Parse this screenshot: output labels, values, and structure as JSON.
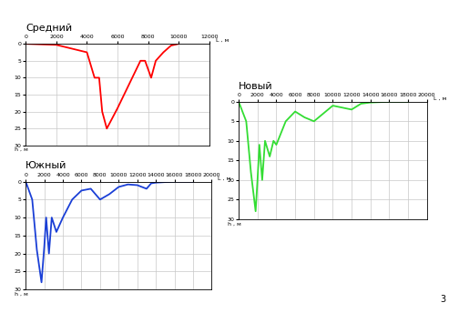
{
  "chart_data": [
    {
      "type": "line",
      "title": "Средний",
      "x_label": "L , м",
      "y_label": "h , м",
      "color": "#ff0000",
      "grid": true,
      "x": [
        0,
        2000,
        4000,
        4500,
        4800,
        5000,
        5300,
        6000,
        7500,
        7800,
        8200,
        8500,
        9000,
        9500,
        10000
      ],
      "values": [
        0,
        0.3,
        2.5,
        10,
        10,
        20,
        25,
        19,
        5,
        5,
        10,
        5,
        2.5,
        0.5,
        0
      ],
      "xlim": [
        0,
        12000
      ],
      "xticks": [
        0,
        2000,
        4000,
        6000,
        8000,
        10000,
        12000
      ],
      "ylim": [
        30,
        0
      ],
      "yticks": [
        0,
        5,
        10,
        15,
        20,
        25,
        30
      ]
    },
    {
      "type": "line",
      "title": "Новый",
      "x_label": "L , м",
      "y_label": "h , м",
      "color": "#33dd33",
      "grid": true,
      "x": [
        0,
        800,
        1300,
        1800,
        2000,
        2200,
        2500,
        2800,
        3300,
        3700,
        4000,
        5000,
        6000,
        7000,
        8000,
        9000,
        10000,
        11000,
        12000,
        13000,
        14000,
        16000,
        18000
      ],
      "values": [
        0,
        5,
        18,
        28,
        20,
        11,
        20,
        10,
        14,
        10,
        11,
        5,
        2.5,
        4,
        5,
        3,
        1,
        1.5,
        2,
        0.5,
        0.2,
        0,
        0
      ],
      "xlim": [
        0,
        20000
      ],
      "xticks": [
        0,
        2000,
        4000,
        6000,
        8000,
        10000,
        12000,
        14000,
        16000,
        18000,
        20000
      ],
      "ylim": [
        30,
        0
      ],
      "yticks": [
        0,
        5,
        10,
        15,
        20,
        25,
        30
      ]
    },
    {
      "type": "line",
      "title": "Южный",
      "x_label": "L , м",
      "y_label": "h , м",
      "color": "#1a3fd6",
      "grid": true,
      "x": [
        0,
        700,
        1200,
        1700,
        2000,
        2200,
        2500,
        2800,
        3300,
        4000,
        5000,
        6000,
        7000,
        8000,
        9000,
        10000,
        11000,
        12000,
        13000,
        13500,
        14000,
        16000,
        18000
      ],
      "values": [
        0,
        5,
        19,
        28,
        18,
        10,
        20,
        10,
        14,
        10,
        5,
        2.5,
        2,
        5,
        3.5,
        1.5,
        0.8,
        1,
        2,
        0.5,
        0.3,
        0,
        0
      ],
      "xlim": [
        0,
        20000
      ],
      "xticks": [
        0,
        2000,
        4000,
        6000,
        8000,
        10000,
        12000,
        14000,
        16000,
        18000,
        20000
      ],
      "ylim": [
        30,
        0
      ],
      "yticks": [
        0,
        5,
        10,
        15,
        20,
        25,
        30
      ]
    }
  ],
  "page_number": "3"
}
